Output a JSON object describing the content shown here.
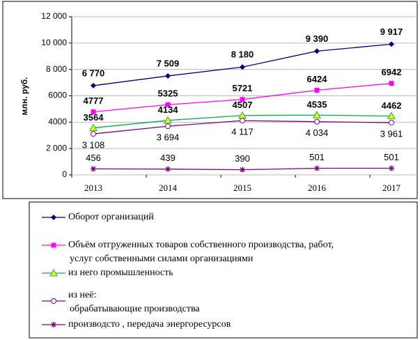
{
  "chart_data": {
    "type": "line",
    "y_label": "млн. руб.",
    "categories": [
      "2013",
      "2014",
      "2015",
      "2016",
      "2017"
    ],
    "ylim": [
      0,
      12000
    ],
    "yticks": [
      0,
      {
        "value": 2000,
        "label": "2 000"
      },
      4000,
      6000,
      {
        "value": 8000,
        "label": "8 000"
      },
      {
        "value": 10000,
        "label": "10 000"
      },
      {
        "value": 12000,
        "label": "12 000"
      }
    ],
    "series": [
      {
        "name": "Оборот организаций",
        "color": "#000080",
        "marker": "diamond",
        "values": [
          6770,
          7509,
          8180,
          9390,
          9917
        ],
        "value_labels": [
          "6 770",
          "7 509",
          "8 180",
          "9 390",
          "9 917"
        ]
      },
      {
        "name": "Объём отгруженных товаров  собственного производства, работ,\nуслуг собственными силами  организациями",
        "color": "#ff00ff",
        "marker": "square",
        "values": [
          4777,
          5325,
          5721,
          6424,
          6942
        ]
      },
      {
        "name": "из него  промышленность",
        "color": "#00b050",
        "marker": "triangle",
        "values": [
          3564,
          4134,
          4507,
          4535,
          4462
        ]
      },
      {
        "name": "из неё:\nобрабатывающие производства",
        "color": "#800080",
        "marker": "circle",
        "values": [
          3108,
          3694,
          4117,
          4034,
          3961
        ],
        "value_labels": [
          "3 108",
          "3 694",
          "4 117",
          "4 034",
          "3 961"
        ]
      },
      {
        "name": "производсто , передача энергоресурсов",
        "color": "#800080",
        "marker": "star",
        "values": [
          456,
          439,
          390,
          501,
          501
        ]
      }
    ]
  }
}
